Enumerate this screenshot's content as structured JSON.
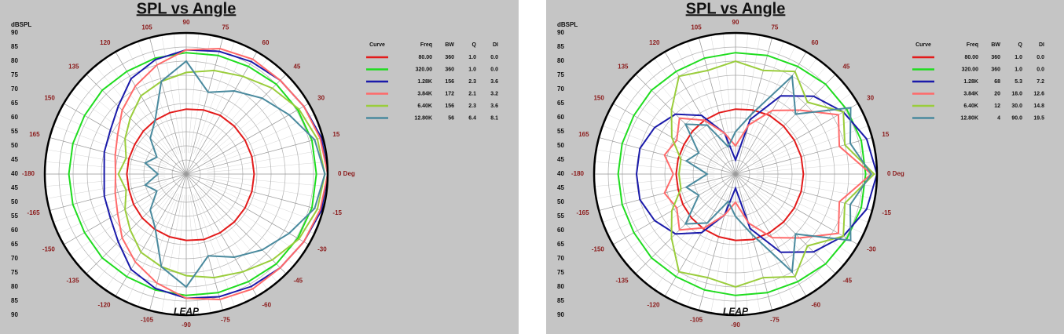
{
  "chart_data": [
    {
      "type": "polar",
      "title": "SPL vs Angle",
      "r_label": "dBSPL",
      "logo": "LEAP",
      "rlim": [
        40,
        90
      ],
      "rticks": [
        40,
        45,
        50,
        55,
        60,
        65,
        70,
        75,
        80,
        85,
        90
      ],
      "angle_ticks": [
        {
          "value": 0,
          "label": "0 Deg"
        },
        15,
        30,
        45,
        60,
        75,
        90,
        105,
        120,
        135,
        150,
        165,
        {
          "value": 180,
          "label": "-180"
        },
        -165,
        -150,
        -135,
        -120,
        -105,
        -90,
        -75,
        -60,
        -45,
        -30,
        -15
      ],
      "theta": [
        0,
        15,
        30,
        45,
        60,
        75,
        90,
        105,
        120,
        135,
        150,
        165,
        180,
        -165,
        -150,
        -135,
        -120,
        -105,
        -90,
        -75,
        -60,
        -45,
        -30,
        -15
      ],
      "columns": [
        "Curve",
        "Freq",
        "BW",
        "Q",
        "DI"
      ],
      "series": [
        {
          "name": "80.00",
          "bw": "360",
          "q": "1.0",
          "di": "0.0",
          "color": "#e31b1b",
          "values": [
            64,
            64,
            64,
            64,
            64,
            63.5,
            63,
            62.5,
            62,
            61.5,
            61,
            61,
            61,
            61,
            61.5,
            62,
            62.5,
            63,
            63.5,
            64,
            64,
            64,
            64,
            64
          ]
        },
        {
          "name": "320.00",
          "bw": "360",
          "q": "1.0",
          "di": "0.0",
          "color": "#1fdc1f",
          "values": [
            86,
            86,
            85.5,
            85,
            84,
            83.5,
            83,
            82.5,
            82,
            82,
            81.5,
            81.5,
            81.5,
            81.5,
            81.5,
            82,
            82,
            82.5,
            83,
            83.5,
            84,
            85,
            85.5,
            86
          ]
        },
        {
          "name": "1.28K",
          "bw": "156",
          "q": "2.3",
          "di": "3.6",
          "color": "#1a1aaa",
          "values": [
            90,
            89.5,
            88,
            87,
            86,
            85,
            84,
            82,
            79,
            74,
            71,
            70,
            69,
            70,
            71,
            74,
            79,
            82,
            84,
            85,
            86,
            87,
            88,
            89.5
          ]
        },
        {
          "name": "3.84K",
          "bw": "172",
          "q": "2.1",
          "di": "3.2",
          "color": "#ff6a6a",
          "values": [
            90,
            89,
            88,
            87,
            87,
            86,
            84,
            80,
            76,
            72,
            68,
            66,
            65,
            66,
            68,
            72,
            76,
            80,
            84,
            86,
            87,
            87,
            88,
            89
          ]
        },
        {
          "name": "6.40K",
          "bw": "156",
          "q": "2.3",
          "di": "3.6",
          "color": "#9acd3c",
          "values": [
            89,
            88,
            86,
            83,
            80,
            78,
            76,
            74,
            72,
            68,
            65,
            62,
            64,
            62,
            65,
            68,
            72,
            74,
            76,
            78,
            80,
            83,
            86,
            88
          ]
        },
        {
          "name": "12.80K",
          "bw": "56",
          "q": "6.4",
          "di": "8.1",
          "color": "#4a8a9e",
          "values": [
            89,
            87,
            82,
            78,
            74,
            70,
            80,
            74,
            62,
            58,
            52,
            55,
            50,
            55,
            52,
            58,
            62,
            74,
            80,
            70,
            74,
            78,
            82,
            87
          ]
        }
      ]
    },
    {
      "type": "polar",
      "title": "SPL vs Angle",
      "r_label": "dBSPL",
      "logo": "LEAP",
      "rlim": [
        40,
        90
      ],
      "rticks": [
        40,
        45,
        50,
        55,
        60,
        65,
        70,
        75,
        80,
        85,
        90
      ],
      "angle_ticks": [
        {
          "value": 0,
          "label": "0 Deg"
        },
        15,
        30,
        45,
        60,
        75,
        90,
        105,
        120,
        135,
        150,
        165,
        {
          "value": 180,
          "label": "-180"
        },
        -165,
        -150,
        -135,
        -120,
        -105,
        -90,
        -75,
        -60,
        -45,
        -30,
        -15
      ],
      "theta": [
        0,
        15,
        30,
        45,
        60,
        75,
        90,
        105,
        120,
        135,
        150,
        165,
        180,
        -165,
        -150,
        -135,
        -120,
        -105,
        -90,
        -75,
        -60,
        -45,
        -30,
        -15
      ],
      "columns": [
        "Curve",
        "Freq",
        "BW",
        "Q",
        "DI"
      ],
      "series": [
        {
          "name": "80.00",
          "bw": "360",
          "q": "1.0",
          "di": "0.0",
          "color": "#e31b1b",
          "values": [
            64,
            64,
            64,
            64,
            64,
            63.5,
            63,
            62.5,
            62,
            61.5,
            61,
            61,
            61,
            61,
            61.5,
            62,
            62.5,
            63,
            63.5,
            64,
            64,
            64,
            64,
            64
          ]
        },
        {
          "name": "320.00",
          "bw": "360",
          "q": "1.0",
          "di": "0.0",
          "color": "#1fdc1f",
          "values": [
            86,
            86,
            85.5,
            85,
            84,
            83.5,
            83,
            82.5,
            82,
            82,
            81.5,
            81.5,
            81.5,
            81.5,
            81.5,
            82,
            82,
            82.5,
            83,
            83.5,
            84,
            85,
            85.5,
            86
          ]
        },
        {
          "name": "1.28K",
          "bw": "68",
          "q": "5.3",
          "di": "7.2",
          "color": "#1a1aaa",
          "values": [
            90,
            88,
            84,
            79,
            72,
            60,
            45,
            55,
            64,
            70,
            73,
            75,
            75,
            75,
            73,
            70,
            64,
            55,
            45,
            60,
            72,
            79,
            84,
            88
          ]
        },
        {
          "name": "3.84K",
          "bw": "20",
          "q": "18.0",
          "di": "12.6",
          "color": "#ff6a6a",
          "values": [
            88,
            78,
            82,
            72,
            66,
            58,
            50,
            55,
            62,
            68,
            64,
            66,
            62,
            66,
            64,
            68,
            62,
            55,
            50,
            58,
            66,
            72,
            82,
            78
          ]
        },
        {
          "name": "6.40K",
          "bw": "12",
          "q": "30.0",
          "di": "14.8",
          "color": "#9acd3c",
          "values": [
            89,
            80,
            84,
            76,
            82,
            78,
            80,
            78,
            80,
            72,
            66,
            60,
            60,
            60,
            66,
            72,
            80,
            78,
            80,
            78,
            82,
            76,
            84,
            80
          ]
        },
        {
          "name": "12.80K",
          "bw": "4",
          "q": "90.0",
          "di": "19.5",
          "color": "#4a8a9e",
          "values": [
            88,
            82,
            87,
            70,
            80,
            62,
            55,
            50,
            60,
            65,
            55,
            58,
            50,
            58,
            55,
            65,
            60,
            50,
            55,
            62,
            80,
            70,
            87,
            82
          ]
        }
      ]
    }
  ]
}
